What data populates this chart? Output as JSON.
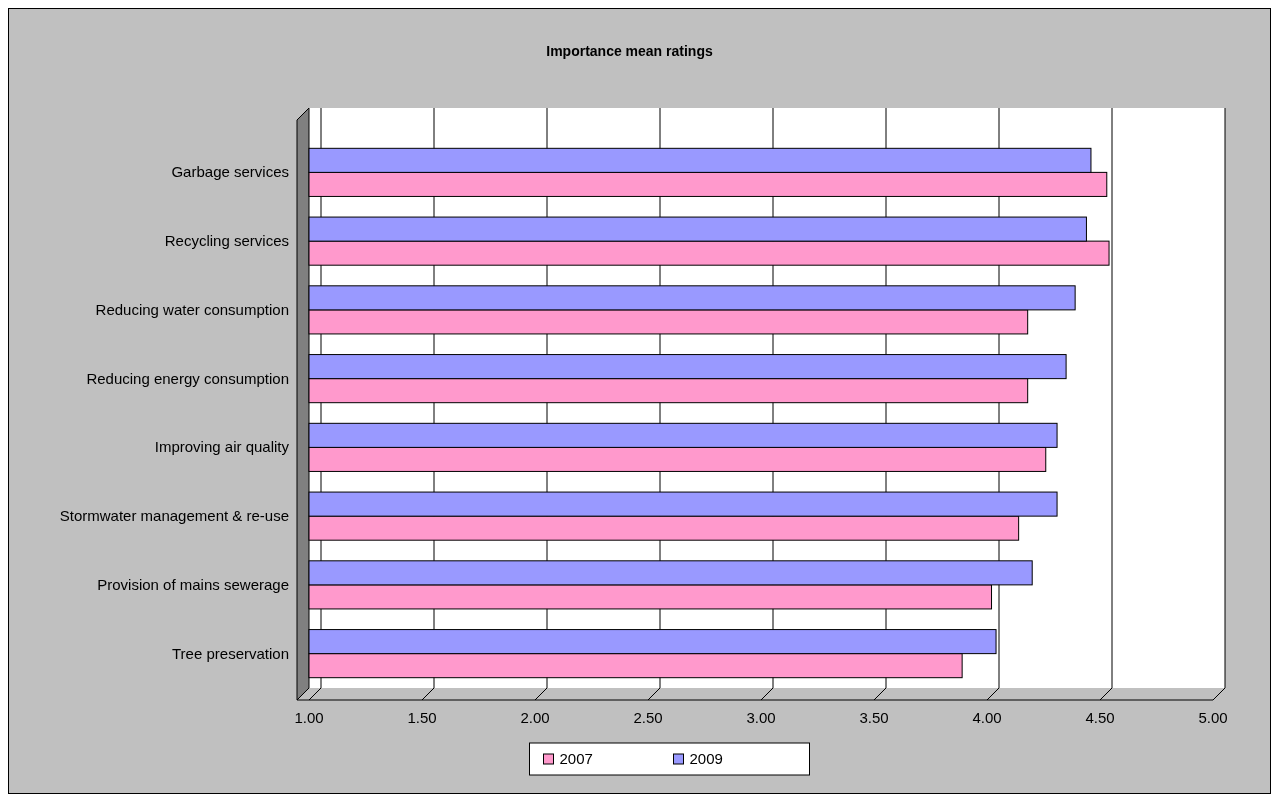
{
  "chart_data": {
    "type": "bar",
    "orientation": "horizontal",
    "title": "Importance mean ratings",
    "categories": [
      "Garbage services",
      "Recycling services",
      "Reducing water consumption",
      "Reducing energy consumption",
      "Improving air quality",
      "Stormwater management & re-use",
      "Provision of mains sewerage",
      "Tree preservation"
    ],
    "series": [
      {
        "name": "2007",
        "color": "#ff99cc",
        "values": [
          4.53,
          4.54,
          4.18,
          4.18,
          4.26,
          4.14,
          4.02,
          3.89
        ]
      },
      {
        "name": "2009",
        "color": "#9999ff",
        "values": [
          4.46,
          4.44,
          4.39,
          4.35,
          4.31,
          4.31,
          4.2,
          4.04
        ]
      }
    ],
    "xlim": [
      1,
      5
    ],
    "xticks": [
      {
        "value": 1,
        "label": "1.00"
      },
      {
        "value": 1.5,
        "label": "1.50"
      },
      {
        "value": 2,
        "label": "2.00"
      },
      {
        "value": 2.5,
        "label": "2.50"
      },
      {
        "value": 3,
        "label": "3.00"
      },
      {
        "value": 3.5,
        "label": "3.50"
      },
      {
        "value": 4,
        "label": "4.00"
      },
      {
        "value": 4.5,
        "label": "4.50"
      },
      {
        "value": 5,
        "label": "5.00"
      }
    ],
    "grid": "x",
    "legend": "bottom"
  }
}
